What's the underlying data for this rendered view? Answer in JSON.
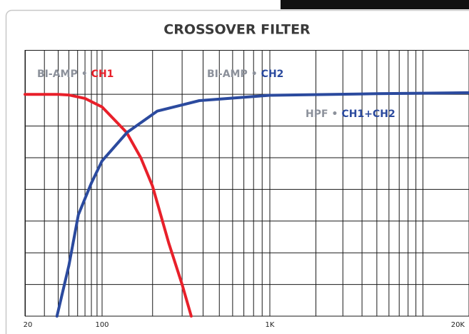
{
  "chart_data": {
    "type": "line",
    "title": "CROSSOVER FILTER",
    "log_x": true,
    "xlim": [
      20,
      20000
    ],
    "xticks": [
      20,
      100,
      {
        "value": 1000,
        "label": "1K"
      },
      {
        "value": 20000,
        "label": "20K"
      }
    ],
    "xminorticks": [
      30,
      40,
      50,
      60,
      70,
      80,
      90,
      200,
      300,
      400,
      500,
      600,
      700,
      800,
      900,
      2000,
      3000,
      4000,
      5000,
      6000,
      7000,
      8000,
      9000,
      10000
    ],
    "ylim": [
      0,
      8.4
    ],
    "yticks": [
      0,
      1,
      2,
      3,
      4,
      5,
      6,
      7
    ],
    "grid": true,
    "series": [
      {
        "color": "#e8202a",
        "x": [
          20,
          40,
          50,
          70,
          100,
          140,
          170,
          200,
          250,
          300,
          340
        ],
        "values": [
          7.0,
          7.0,
          6.98,
          6.87,
          6.6,
          5.8,
          5.0,
          4.1,
          2.3,
          1.0,
          0
        ]
      },
      {
        "color": "#2b4a9e",
        "x": [
          39,
          50,
          61,
          80,
          100,
          141,
          213,
          380,
          1000,
          5000,
          20000
        ],
        "values": [
          0,
          1.6,
          3.2,
          4.2,
          4.9,
          5.8,
          6.47,
          6.8,
          6.97,
          7.02,
          7.05
        ]
      }
    ],
    "annotations": [
      {
        "parts": [
          {
            "text": "BI-AMP",
            "color": "#8c919b"
          },
          {
            "text": "•",
            "color": "#8c919b"
          },
          {
            "text": "CH1",
            "color": "#e8202a"
          }
        ]
      },
      {
        "parts": [
          {
            "text": "BI-AMP",
            "color": "#8c919b"
          },
          {
            "text": "•",
            "color": "#8c919b"
          },
          {
            "text": "CH2",
            "color": "#2b4a9e"
          }
        ]
      },
      {
        "parts": [
          {
            "text": "HPF",
            "color": "#8c919b"
          },
          {
            "text": "•",
            "color": "#8c919b"
          },
          {
            "text": "CH1+CH2",
            "color": "#2b4a9e"
          }
        ]
      }
    ]
  }
}
